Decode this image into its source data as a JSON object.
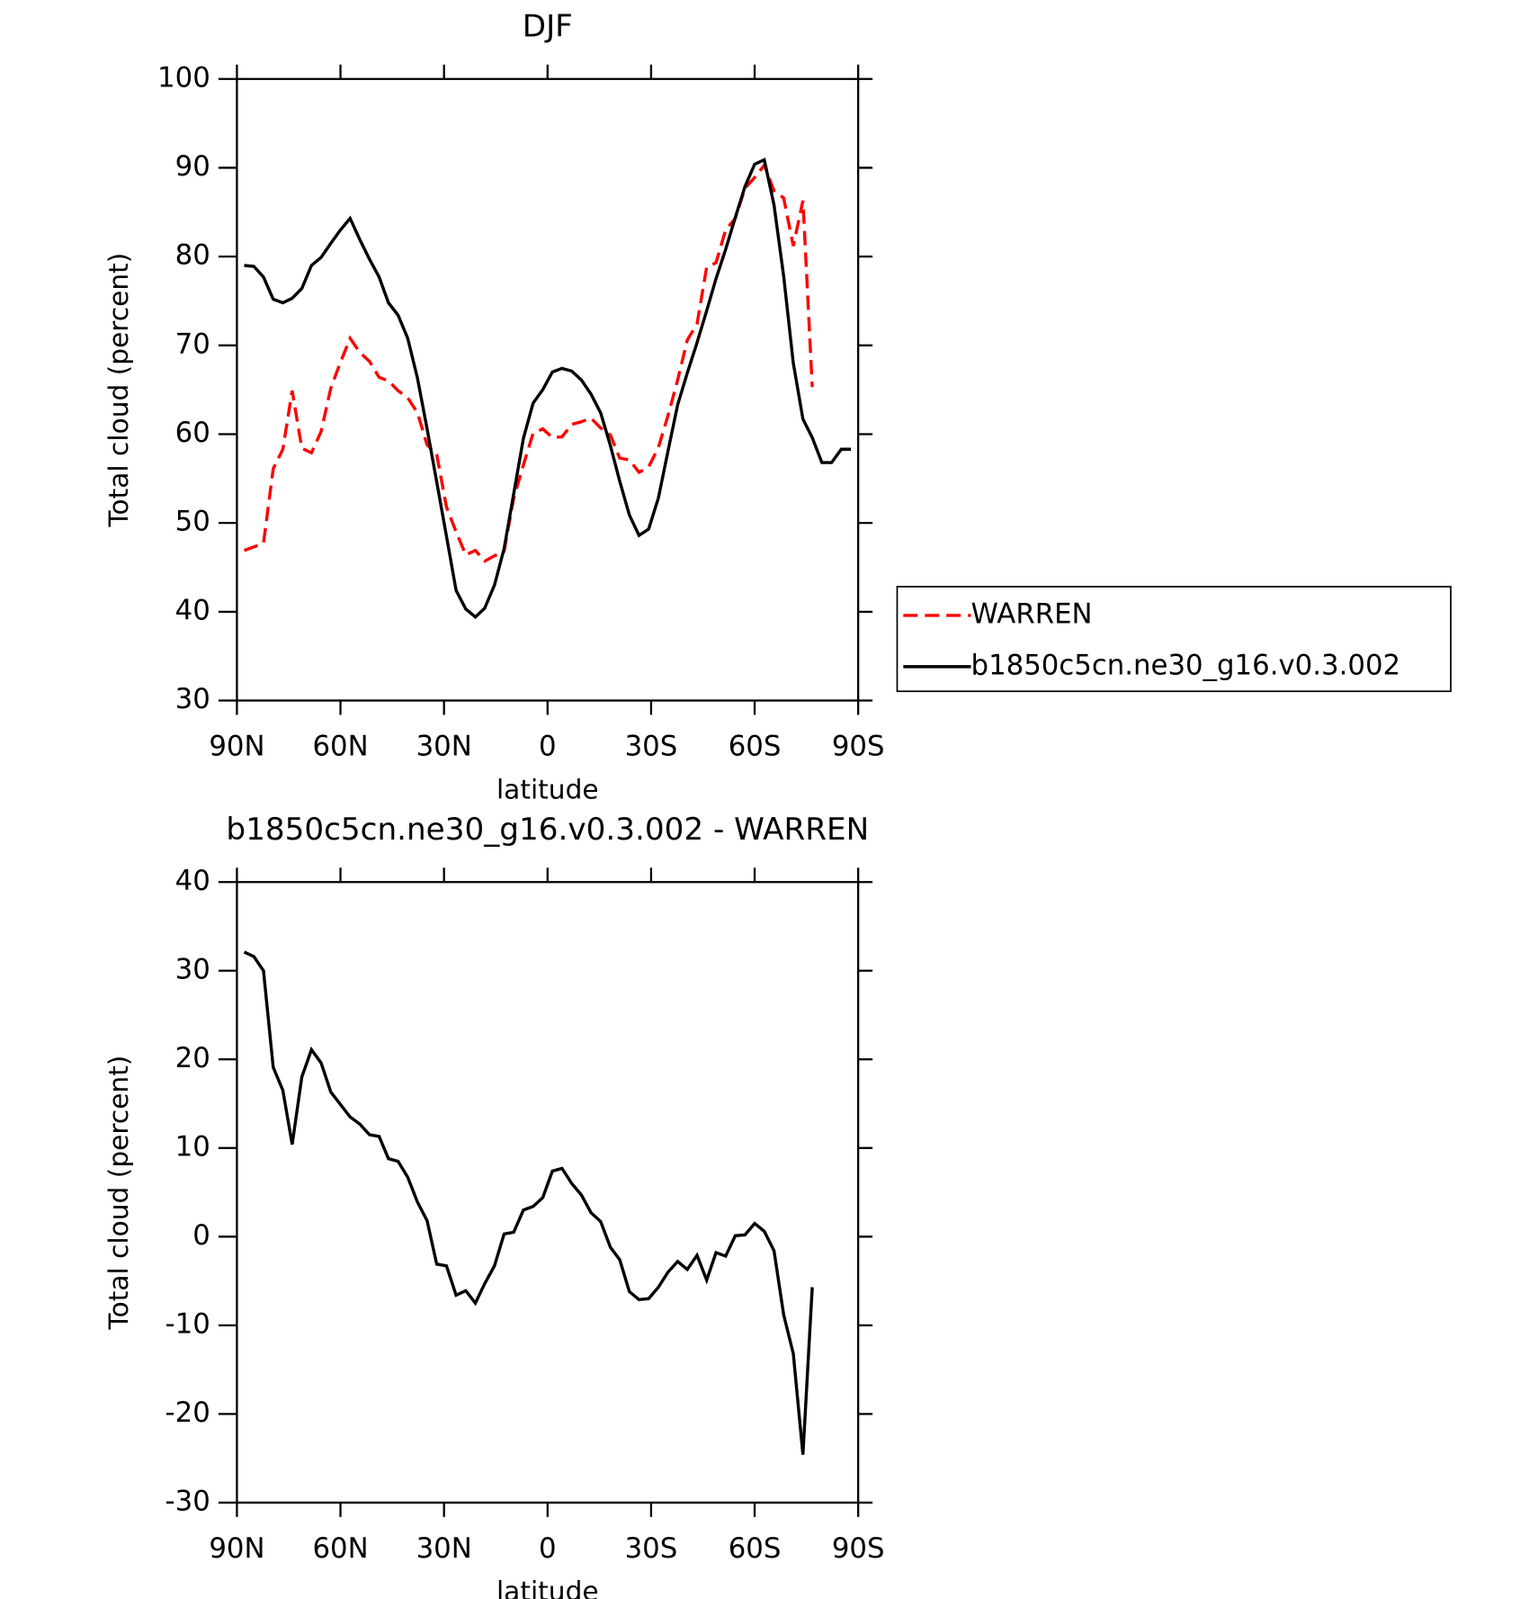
{
  "chart_data": [
    {
      "type": "line",
      "title": "DJF",
      "xlabel": "latitude",
      "ylabel": "Total cloud (percent)",
      "xlim": [
        90,
        -90
      ],
      "xticks": [
        {
          "value": 90,
          "label": "90N"
        },
        {
          "value": 60,
          "label": "60N"
        },
        {
          "value": 30,
          "label": "30N"
        },
        0,
        {
          "value": -30,
          "label": "30S"
        },
        {
          "value": -60,
          "label": "60S"
        },
        {
          "value": -90,
          "label": "90S"
        }
      ],
      "ylim": [
        30,
        100
      ],
      "yticks": [
        30,
        40,
        50,
        60,
        70,
        80,
        90,
        100
      ],
      "legend": "outside-right",
      "x": [
        87.9,
        85.1,
        82.3,
        79.5,
        76.7,
        74.0,
        71.2,
        68.4,
        65.6,
        62.8,
        60.0,
        57.2,
        54.4,
        51.6,
        48.8,
        46.1,
        43.3,
        40.5,
        37.7,
        34.9,
        32.1,
        29.3,
        26.5,
        23.7,
        20.9,
        18.2,
        15.4,
        12.6,
        9.8,
        7.0,
        4.2,
        1.4,
        -1.4,
        -4.2,
        -7.0,
        -9.8,
        -12.6,
        -15.4,
        -18.2,
        -20.9,
        -23.7,
        -26.5,
        -29.3,
        -32.1,
        -34.9,
        -37.7,
        -40.5,
        -43.3,
        -46.1,
        -48.8,
        -51.6,
        -54.4,
        -57.2,
        -60.0,
        -62.8,
        -65.6,
        -68.4,
        -71.2,
        -74.0,
        -76.7,
        -79.5,
        -82.3,
        -85.1,
        -87.9
      ],
      "series": [
        {
          "name": "WARREN",
          "color": "#ff0000",
          "style": "dashed",
          "values": [
            46.9,
            47.3,
            47.7,
            56.1,
            58.3,
            64.9,
            58.4,
            57.9,
            60.3,
            65.2,
            68.1,
            70.8,
            69.2,
            68.2,
            66.4,
            66.0,
            64.9,
            64.1,
            62.4,
            58.8,
            57.7,
            51.8,
            49.0,
            46.4,
            46.9,
            45.7,
            46.3,
            46.8,
            52.8,
            56.5,
            60.1,
            60.6,
            59.6,
            59.7,
            61.1,
            61.4,
            61.8,
            60.7,
            59.9,
            57.3,
            57.1,
            55.7,
            56.3,
            58.5,
            62.1,
            66.1,
            70.6,
            72.4,
            78.8,
            79.3,
            83.0,
            84.3,
            87.7,
            88.9,
            90.3,
            87.4,
            86.6,
            81.2,
            86.3,
            65.3,
            null,
            null,
            null,
            null
          ]
        },
        {
          "name": "b1850c5cn.ne30_g16.v0.3.002",
          "color": "#000000",
          "style": "solid",
          "values": [
            79.0,
            78.9,
            77.7,
            75.2,
            74.8,
            75.3,
            76.4,
            79.0,
            79.9,
            81.5,
            83.0,
            84.3,
            81.9,
            79.7,
            77.7,
            74.8,
            73.4,
            70.8,
            66.3,
            60.6,
            54.6,
            48.5,
            42.4,
            40.3,
            39.4,
            40.4,
            43.0,
            47.1,
            53.3,
            59.5,
            63.5,
            65.0,
            67.0,
            67.4,
            67.1,
            66.1,
            64.5,
            62.4,
            58.7,
            54.7,
            50.9,
            48.6,
            49.3,
            52.8,
            58.1,
            63.3,
            66.9,
            70.3,
            73.9,
            77.5,
            80.8,
            84.4,
            87.9,
            90.4,
            90.9,
            85.8,
            77.8,
            68.0,
            61.7,
            59.6,
            56.8,
            56.8,
            58.3,
            58.3
          ]
        }
      ]
    },
    {
      "type": "line",
      "title": "b1850c5cn.ne30_g16.v0.3.002 - WARREN",
      "xlabel": "latitude",
      "ylabel": "Total cloud (percent)",
      "xlim": [
        90,
        -90
      ],
      "xticks": [
        {
          "value": 90,
          "label": "90N"
        },
        {
          "value": 60,
          "label": "60N"
        },
        {
          "value": 30,
          "label": "30N"
        },
        0,
        {
          "value": -30,
          "label": "30S"
        },
        {
          "value": -60,
          "label": "60S"
        },
        {
          "value": -90,
          "label": "90S"
        }
      ],
      "ylim": [
        -30,
        40
      ],
      "yticks": [
        -30,
        -20,
        -10,
        0,
        10,
        20,
        30,
        40
      ],
      "x": [
        87.9,
        85.1,
        82.3,
        79.5,
        76.7,
        74.0,
        71.2,
        68.4,
        65.6,
        62.8,
        60.0,
        57.2,
        54.4,
        51.6,
        48.8,
        46.1,
        43.3,
        40.5,
        37.7,
        34.9,
        32.1,
        29.3,
        26.5,
        23.7,
        20.9,
        18.2,
        15.4,
        12.6,
        9.8,
        7.0,
        4.2,
        1.4,
        -1.4,
        -4.2,
        -7.0,
        -9.8,
        -12.6,
        -15.4,
        -18.2,
        -20.9,
        -23.7,
        -26.5,
        -29.3,
        -32.1,
        -34.9,
        -37.7,
        -40.5,
        -43.3,
        -46.1,
        -48.8,
        -51.6,
        -54.4,
        -57.2,
        -60.0,
        -62.8,
        -65.6,
        -68.4,
        -71.2,
        -74.0,
        -76.7,
        -79.5,
        -82.3,
        -85.1,
        -87.9
      ],
      "series": [
        {
          "color": "#000000",
          "style": "solid",
          "values": [
            32.1,
            31.6,
            30.0,
            19.1,
            16.5,
            10.4,
            18.0,
            21.1,
            19.6,
            16.3,
            14.9,
            13.5,
            12.7,
            11.5,
            11.3,
            8.8,
            8.5,
            6.7,
            3.9,
            1.8,
            -3.1,
            -3.3,
            -6.6,
            -6.1,
            -7.5,
            -5.3,
            -3.3,
            0.3,
            0.5,
            3.0,
            3.4,
            4.4,
            7.4,
            7.7,
            6.0,
            4.7,
            2.7,
            1.7,
            -1.2,
            -2.6,
            -6.2,
            -7.1,
            -7.0,
            -5.7,
            -4.0,
            -2.8,
            -3.7,
            -2.1,
            -4.9,
            -1.8,
            -2.2,
            0.1,
            0.2,
            1.5,
            0.6,
            -1.6,
            -8.8,
            -13.2,
            -24.6,
            -5.7,
            null,
            null,
            null,
            null
          ]
        }
      ]
    }
  ]
}
